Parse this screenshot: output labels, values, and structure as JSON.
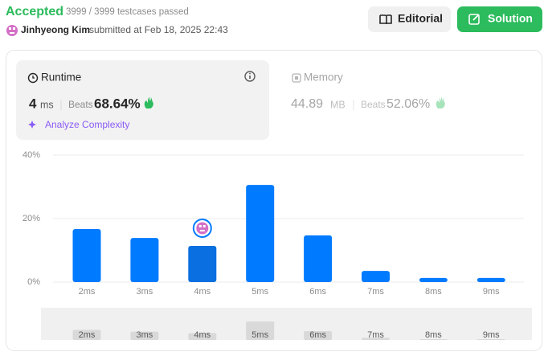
{
  "header": {
    "status": "Accepted",
    "testcases": "3999 / 3999 testcases passed",
    "user": "Jinhyeong Kim",
    "submitted": "submitted at Feb 18, 2025 22:43"
  },
  "buttons": {
    "editorial": "Editorial",
    "solution": "Solution"
  },
  "runtime": {
    "label": "Runtime",
    "value": "4",
    "unit": "ms",
    "beats_label": "Beats",
    "beats": "68.64%",
    "analyze": "Analyze Complexity"
  },
  "memory": {
    "label": "Memory",
    "value": "44.89",
    "unit": "MB",
    "beats_label": "Beats",
    "beats": "52.06%"
  },
  "chart_data": {
    "type": "bar",
    "categories": [
      "2ms",
      "3ms",
      "4ms",
      "5ms",
      "6ms",
      "7ms",
      "8ms",
      "9ms"
    ],
    "values": [
      16.7,
      13.9,
      11.4,
      30.6,
      14.7,
      3.5,
      1.3,
      1.3
    ],
    "colors": [
      "#007aff",
      "#007aff",
      "#0a6fe0",
      "#007aff",
      "#007aff",
      "#007aff",
      "#007aff",
      "#007aff"
    ],
    "ylim": [
      0,
      40
    ],
    "yticks": [
      {
        "value": 0,
        "label": "0%"
      },
      {
        "value": 20,
        "label": "20%"
      },
      {
        "value": 40,
        "label": "40%"
      }
    ],
    "grid": true
  }
}
